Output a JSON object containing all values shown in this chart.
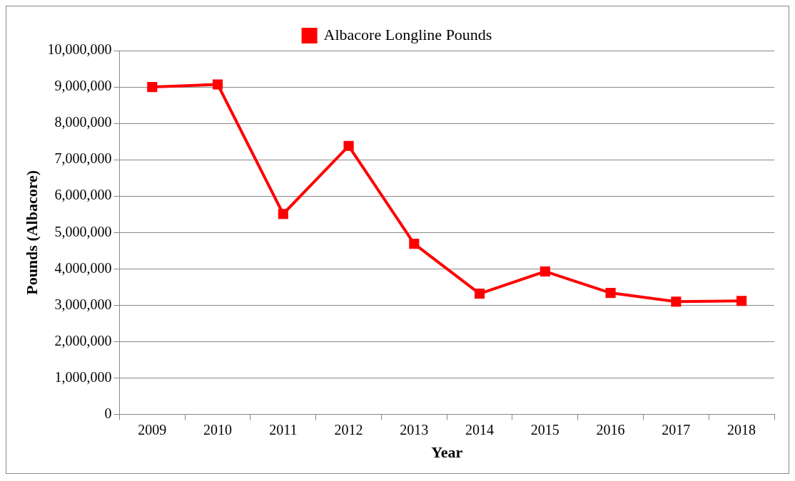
{
  "chart_data": {
    "type": "line",
    "xlabel": "Year",
    "ylabel": "Pounds (Albacore)",
    "categories": [
      "2009",
      "2010",
      "2011",
      "2012",
      "2013",
      "2014",
      "2015",
      "2016",
      "2017",
      "2018"
    ],
    "series": [
      {
        "name": "Albacore Longline Pounds",
        "color": "#ff0000",
        "values": [
          9000000,
          9070000,
          5510000,
          7380000,
          4690000,
          3320000,
          3930000,
          3340000,
          3100000,
          3120000
        ]
      }
    ],
    "ylim": [
      0,
      10000000
    ],
    "yticks": [
      0,
      {
        "value": 1000000,
        "label": "1,000,000"
      },
      {
        "value": 2000000,
        "label": "2,000,000"
      },
      {
        "value": 3000000,
        "label": "3,000,000"
      },
      {
        "value": 4000000,
        "label": "4,000,000"
      },
      {
        "value": 5000000,
        "label": "5,000,000"
      },
      {
        "value": 6000000,
        "label": "6,000,000"
      },
      {
        "value": 7000000,
        "label": "7,000,000"
      },
      {
        "value": 8000000,
        "label": "8,000,000"
      },
      {
        "value": 9000000,
        "label": "9,000,000"
      },
      {
        "value": 10000000,
        "label": "10,000,000"
      }
    ],
    "grid": "y",
    "legend": "top",
    "marker": "square",
    "line_style": "solid"
  }
}
